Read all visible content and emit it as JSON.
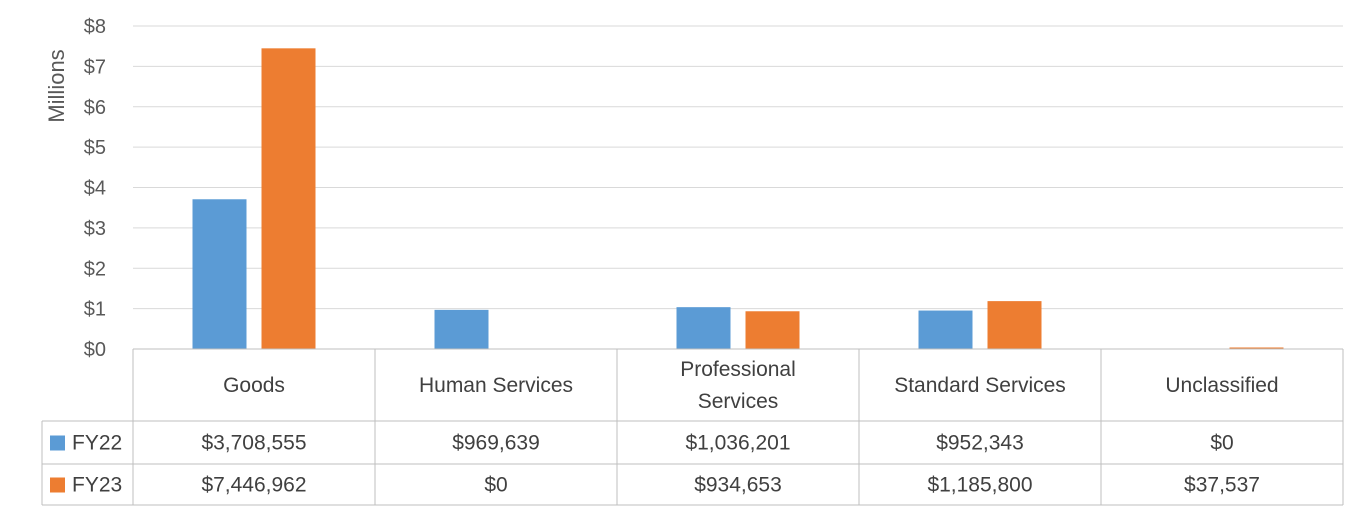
{
  "chart_data": {
    "type": "bar",
    "ylabel": "Millions",
    "ylim": [
      0,
      8
    ],
    "y_ticks": [
      "$0",
      "$1",
      "$2",
      "$3",
      "$4",
      "$5",
      "$6",
      "$7",
      "$8"
    ],
    "categories": [
      [
        "Goods"
      ],
      [
        "Human Services"
      ],
      [
        "Professional",
        "Services"
      ],
      [
        "Standard Services"
      ],
      [
        "Unclassified"
      ]
    ],
    "series": [
      {
        "name": "FY22",
        "color": "#5B9BD5",
        "values": [
          3.708555,
          0.969639,
          1.036201,
          0.952343,
          0
        ],
        "labels": [
          "$3,708,555",
          "$969,639",
          "$1,036,201",
          "$952,343",
          "$0"
        ]
      },
      {
        "name": "FY23",
        "color": "#ED7D31",
        "values": [
          7.446962,
          0,
          0.934653,
          1.1858,
          0.037537
        ],
        "labels": [
          "$7,446,962",
          "$0",
          "$934,653",
          "$1,185,800",
          "$37,537"
        ]
      }
    ],
    "grid": true,
    "legend": "data-table"
  }
}
